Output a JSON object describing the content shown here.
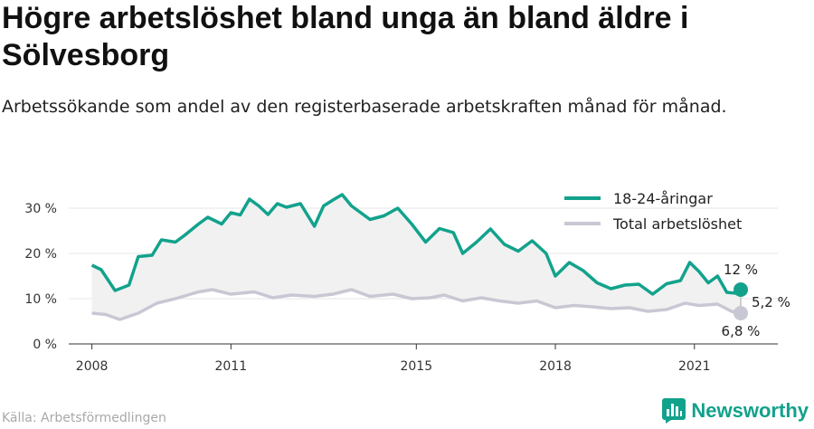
{
  "title": "Högre arbetslöshet bland unga än bland äldre i Sölvesborg",
  "subtitle": "Arbetssökande som andel av den registerbaserade arbetskraften månad för månad.",
  "source": "Källa: Arbetsförmedlingen",
  "brand": {
    "name": "Newsworthy",
    "icon": "bar-chart-logo-icon"
  },
  "colors": {
    "youth": "#12a28c",
    "total": "#c8c8d4",
    "fill": "#f1f1f1",
    "axis": "#333333"
  },
  "chart_data": {
    "type": "line",
    "xlabel": "",
    "ylabel": "",
    "x_ticks": [
      "2008",
      "2011",
      "2015",
      "2018",
      "2021"
    ],
    "y_ticks": [
      "0 %",
      "10 %",
      "20 %",
      "30 %"
    ],
    "ylim": [
      0,
      35
    ],
    "xlim": [
      2007.5,
      2022.8
    ],
    "legend_position": "top-right",
    "end_labels": {
      "youth": "12 %",
      "total_gap": "5,2 %",
      "total": "6,8 %"
    },
    "series": [
      {
        "name": "18-24-åringar",
        "key": "youth",
        "points": [
          [
            2008.0,
            17.4
          ],
          [
            2008.2,
            16.4
          ],
          [
            2008.5,
            11.8
          ],
          [
            2008.8,
            13.0
          ],
          [
            2009.0,
            19.3
          ],
          [
            2009.3,
            19.6
          ],
          [
            2009.5,
            23.0
          ],
          [
            2009.8,
            22.5
          ],
          [
            2010.0,
            24.0
          ],
          [
            2010.3,
            26.5
          ],
          [
            2010.5,
            28.0
          ],
          [
            2010.8,
            26.5
          ],
          [
            2011.0,
            29.0
          ],
          [
            2011.2,
            28.5
          ],
          [
            2011.4,
            32.0
          ],
          [
            2011.6,
            30.5
          ],
          [
            2011.8,
            28.6
          ],
          [
            2012.0,
            31.0
          ],
          [
            2012.2,
            30.2
          ],
          [
            2012.5,
            31.0
          ],
          [
            2012.8,
            26.0
          ],
          [
            2013.0,
            30.5
          ],
          [
            2013.2,
            31.8
          ],
          [
            2013.4,
            33.0
          ],
          [
            2013.6,
            30.5
          ],
          [
            2014.0,
            27.5
          ],
          [
            2014.3,
            28.3
          ],
          [
            2014.6,
            30.0
          ],
          [
            2014.9,
            26.5
          ],
          [
            2015.2,
            22.5
          ],
          [
            2015.5,
            25.5
          ],
          [
            2015.8,
            24.6
          ],
          [
            2016.0,
            20.0
          ],
          [
            2016.3,
            22.5
          ],
          [
            2016.6,
            25.4
          ],
          [
            2016.9,
            22.0
          ],
          [
            2017.2,
            20.5
          ],
          [
            2017.5,
            22.8
          ],
          [
            2017.8,
            20.0
          ],
          [
            2018.0,
            15.0
          ],
          [
            2018.3,
            18.0
          ],
          [
            2018.6,
            16.2
          ],
          [
            2018.9,
            13.5
          ],
          [
            2019.2,
            12.2
          ],
          [
            2019.5,
            13.0
          ],
          [
            2019.8,
            13.2
          ],
          [
            2020.1,
            11.0
          ],
          [
            2020.4,
            13.3
          ],
          [
            2020.7,
            14.0
          ],
          [
            2020.9,
            18.0
          ],
          [
            2021.1,
            16.0
          ],
          [
            2021.3,
            13.5
          ],
          [
            2021.5,
            15.0
          ],
          [
            2021.7,
            11.4
          ],
          [
            2021.9,
            11.2
          ],
          [
            2022.0,
            12.0
          ]
        ]
      },
      {
        "name": "Total arbetslöshet",
        "key": "total",
        "points": [
          [
            2008.0,
            6.8
          ],
          [
            2008.3,
            6.5
          ],
          [
            2008.6,
            5.4
          ],
          [
            2009.0,
            6.8
          ],
          [
            2009.4,
            9.0
          ],
          [
            2009.8,
            10.0
          ],
          [
            2010.3,
            11.5
          ],
          [
            2010.6,
            12.0
          ],
          [
            2011.0,
            11.0
          ],
          [
            2011.5,
            11.5
          ],
          [
            2011.9,
            10.2
          ],
          [
            2012.3,
            10.8
          ],
          [
            2012.8,
            10.5
          ],
          [
            2013.2,
            11.0
          ],
          [
            2013.6,
            12.0
          ],
          [
            2014.0,
            10.5
          ],
          [
            2014.5,
            11.0
          ],
          [
            2014.9,
            10.0
          ],
          [
            2015.3,
            10.2
          ],
          [
            2015.6,
            10.8
          ],
          [
            2016.0,
            9.5
          ],
          [
            2016.4,
            10.2
          ],
          [
            2016.8,
            9.5
          ],
          [
            2017.2,
            9.0
          ],
          [
            2017.6,
            9.5
          ],
          [
            2018.0,
            8.0
          ],
          [
            2018.4,
            8.5
          ],
          [
            2018.8,
            8.2
          ],
          [
            2019.2,
            7.8
          ],
          [
            2019.6,
            8.0
          ],
          [
            2020.0,
            7.2
          ],
          [
            2020.4,
            7.6
          ],
          [
            2020.8,
            9.0
          ],
          [
            2021.1,
            8.5
          ],
          [
            2021.5,
            8.8
          ],
          [
            2021.8,
            7.2
          ],
          [
            2022.0,
            6.8
          ]
        ]
      }
    ]
  }
}
